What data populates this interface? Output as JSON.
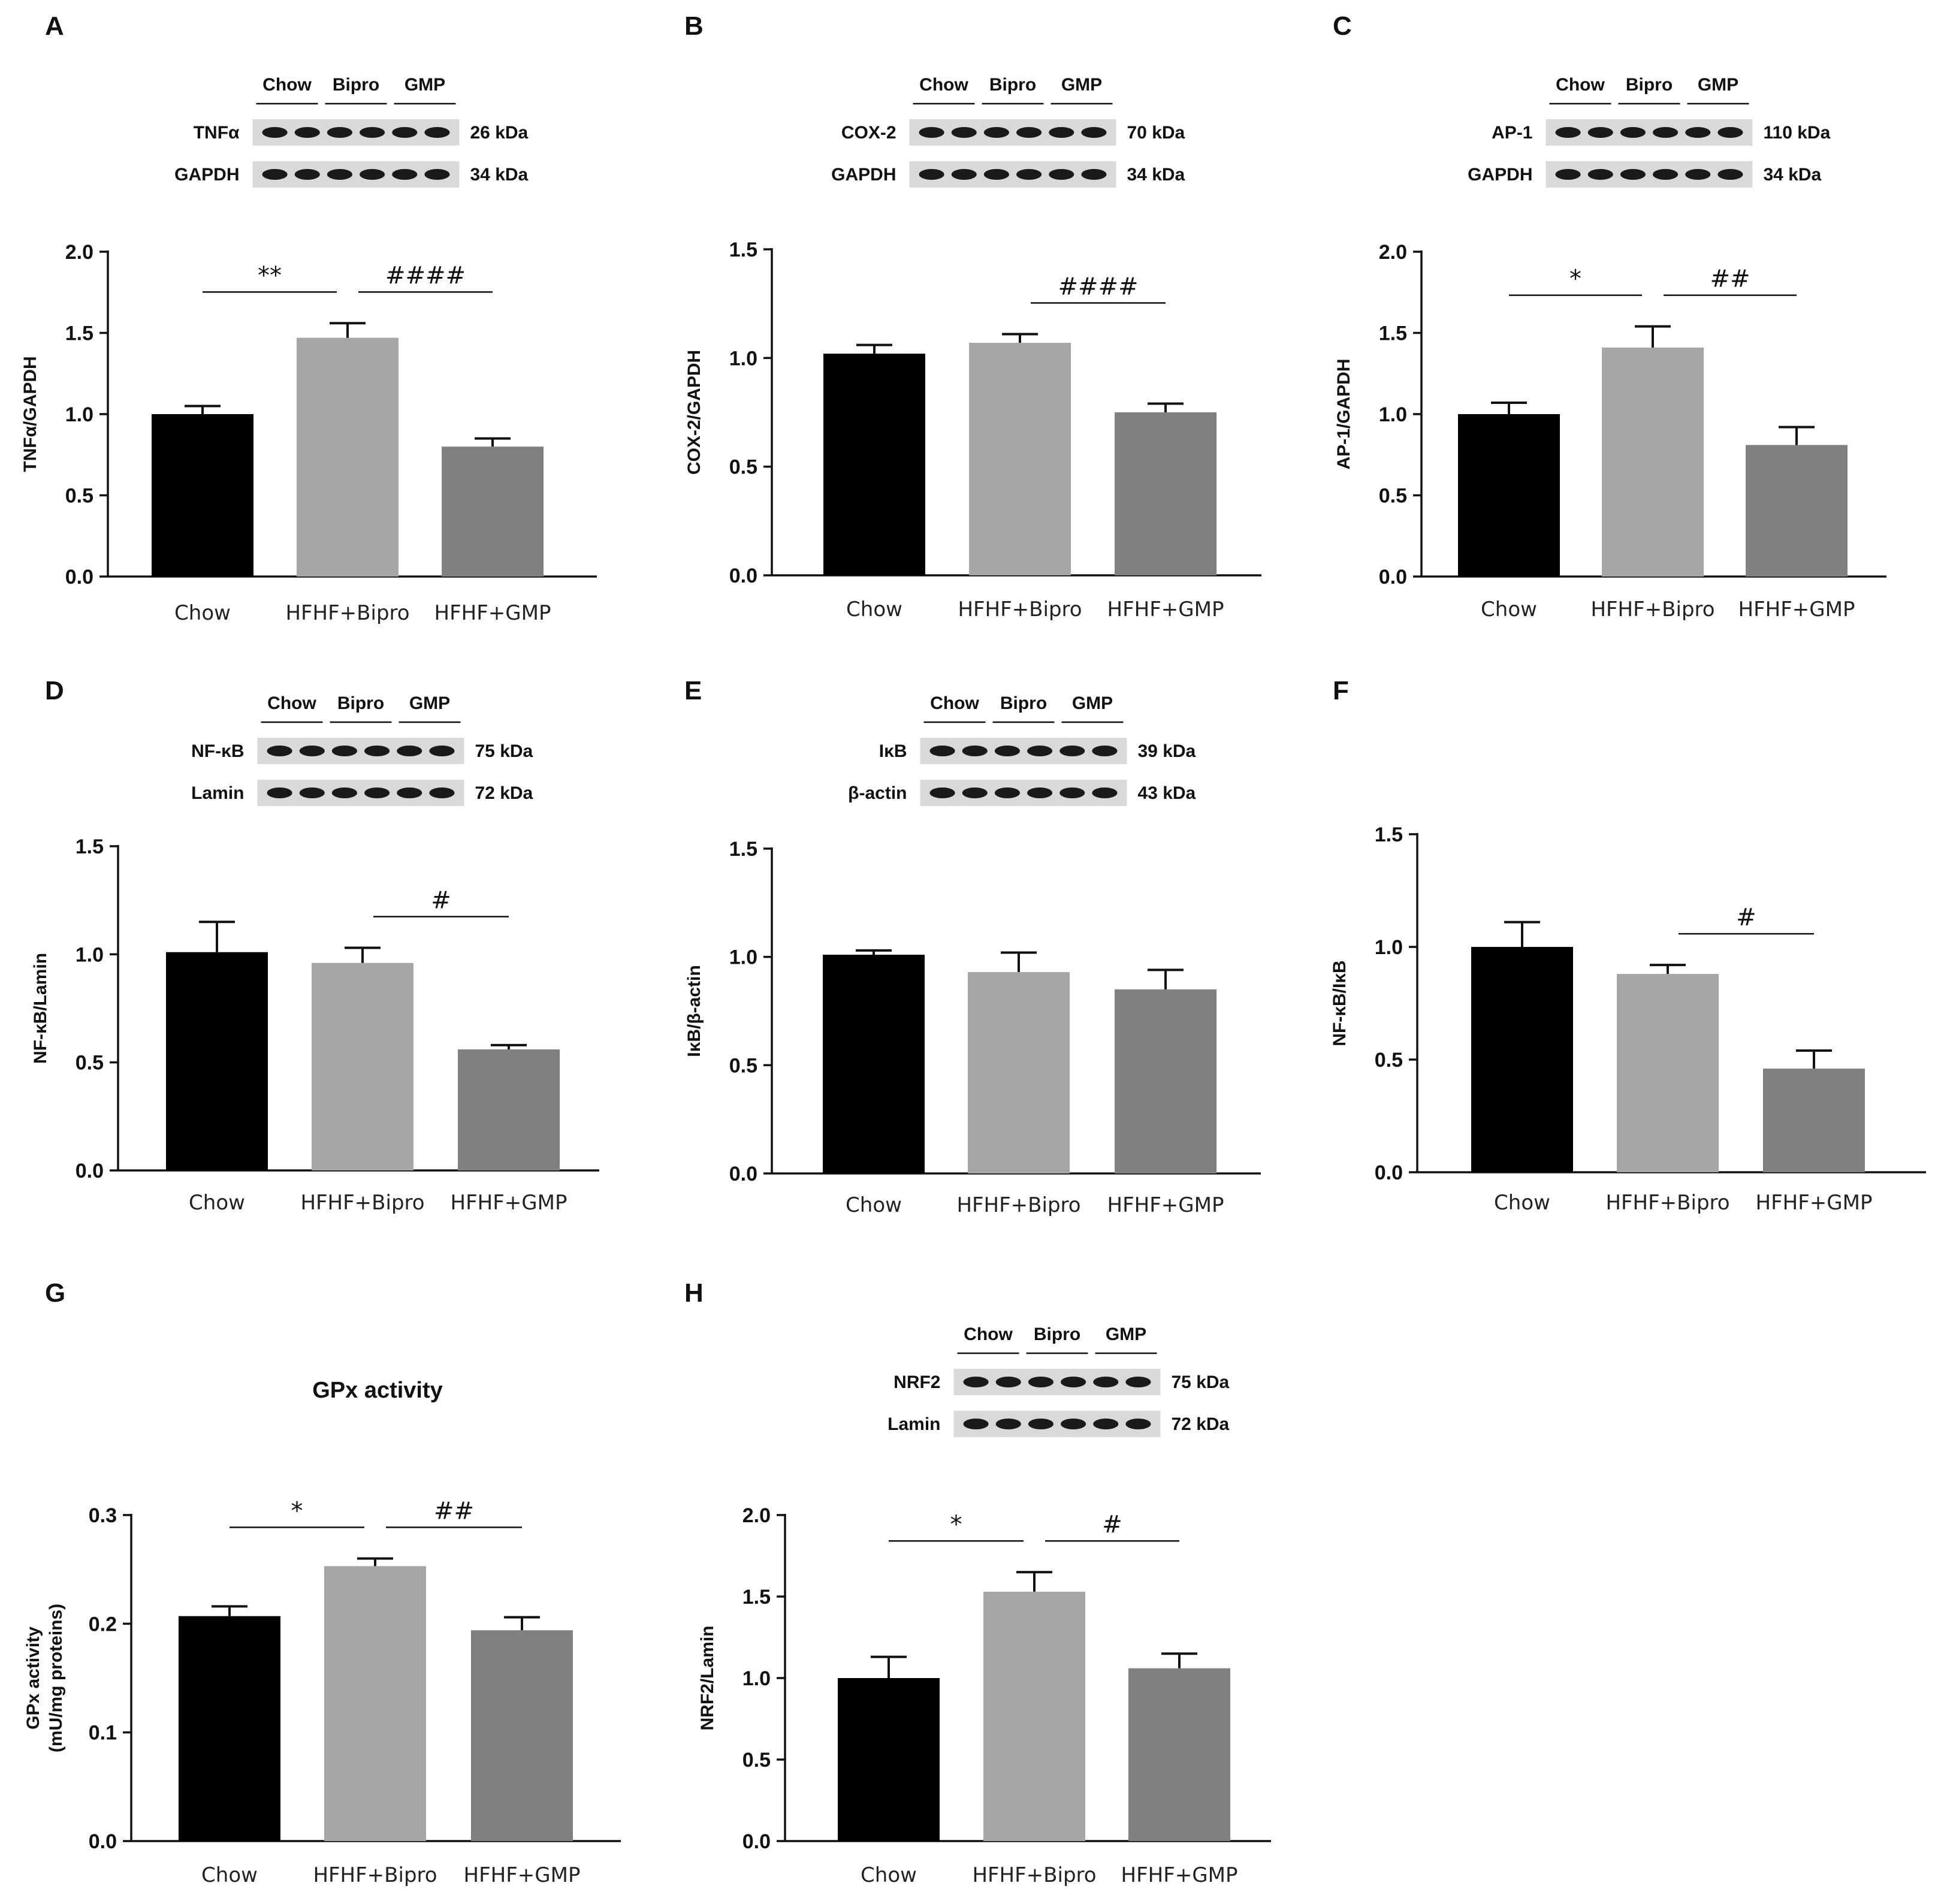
{
  "figure": {
    "colors": {
      "chow": "#000000",
      "bipro": "#a6a6a9",
      "gmp": "#808080"
    },
    "categories": [
      "Chow",
      "HFHF+Bipro",
      "HFHF+GMP"
    ]
  },
  "chart_data": [
    {
      "panel": "A",
      "type": "bar",
      "title": "",
      "xlabel": "",
      "ylabel": "TNFα/GAPDH",
      "ylim": [
        0,
        2.0
      ],
      "ticks": [
        "0.0",
        "0.5",
        "1.0",
        "1.5",
        "2.0"
      ],
      "categories": [
        "Chow",
        "HFHF+Bipro",
        "HFHF+GMP"
      ],
      "values": [
        1.0,
        1.47,
        0.8
      ],
      "errors": [
        0.05,
        0.09,
        0.05
      ],
      "annotations": [
        {
          "label": "**",
          "from": 0,
          "to": 1
        },
        {
          "label": "####",
          "from": 1,
          "to": 2
        }
      ],
      "blot": {
        "groups": [
          "Chow",
          "Bipro",
          "GMP"
        ],
        "rows": [
          {
            "name": "TNFα",
            "size": "26 kDa"
          },
          {
            "name": "GAPDH",
            "size": "34 kDa"
          }
        ]
      }
    },
    {
      "panel": "B",
      "type": "bar",
      "title": "",
      "xlabel": "",
      "ylabel": "COX-2/GAPDH",
      "ylim": [
        0,
        1.5
      ],
      "ticks": [
        "0.0",
        "0.5",
        "1.0",
        "1.5"
      ],
      "categories": [
        "Chow",
        "HFHF+Bipro",
        "HFHF+GMP"
      ],
      "values": [
        1.02,
        1.07,
        0.75
      ],
      "errors": [
        0.04,
        0.04,
        0.04
      ],
      "annotations": [
        {
          "label": "####",
          "from": 1,
          "to": 2
        }
      ],
      "blot": {
        "groups": [
          "Chow",
          "Bipro",
          "GMP"
        ],
        "rows": [
          {
            "name": "COX-2",
            "size": "70 kDa"
          },
          {
            "name": "GAPDH",
            "size": "34 kDa"
          }
        ]
      }
    },
    {
      "panel": "C",
      "type": "bar",
      "title": "",
      "xlabel": "",
      "ylabel": "AP-1/GAPDH",
      "ylim": [
        0,
        2.0
      ],
      "ticks": [
        "0.0",
        "0.5",
        "1.0",
        "1.5",
        "2.0"
      ],
      "categories": [
        "Chow",
        "HFHF+Bipro",
        "HFHF+GMP"
      ],
      "values": [
        1.0,
        1.41,
        0.81
      ],
      "errors": [
        0.07,
        0.13,
        0.11
      ],
      "annotations": [
        {
          "label": "*",
          "from": 0,
          "to": 1
        },
        {
          "label": "##",
          "from": 1,
          "to": 2
        }
      ],
      "blot": {
        "groups": [
          "Chow",
          "Bipro",
          "GMP"
        ],
        "rows": [
          {
            "name": "AP-1",
            "size": "110 kDa"
          },
          {
            "name": "GAPDH",
            "size": "34 kDa"
          }
        ]
      }
    },
    {
      "panel": "D",
      "type": "bar",
      "title": "",
      "xlabel": "",
      "ylabel": "NF-κB/Lamin",
      "ylim": [
        0,
        1.5
      ],
      "ticks": [
        "0.0",
        "0.5",
        "1.0",
        "1.5"
      ],
      "categories": [
        "Chow",
        "HFHF+Bipro",
        "HFHF+GMP"
      ],
      "values": [
        1.01,
        0.96,
        0.56
      ],
      "errors": [
        0.14,
        0.07,
        0.02
      ],
      "annotations": [
        {
          "label": "#",
          "from": 1,
          "to": 2
        }
      ],
      "blot": {
        "groups": [
          "Chow",
          "Bipro",
          "GMP"
        ],
        "rows": [
          {
            "name": "NF-κB",
            "size": "75 kDa"
          },
          {
            "name": "Lamin",
            "size": "72 kDa"
          }
        ]
      }
    },
    {
      "panel": "E",
      "type": "bar",
      "title": "",
      "xlabel": "",
      "ylabel": "IκB/β-actin",
      "ylim": [
        0,
        1.5
      ],
      "ticks": [
        "0.0",
        "0.5",
        "1.0",
        "1.5"
      ],
      "categories": [
        "Chow",
        "HFHF+Bipro",
        "HFHF+GMP"
      ],
      "values": [
        1.01,
        0.93,
        0.85
      ],
      "errors": [
        0.02,
        0.09,
        0.09
      ],
      "annotations": [],
      "blot": {
        "groups": [
          "Chow",
          "Bipro",
          "GMP"
        ],
        "rows": [
          {
            "name": "IκB",
            "size": "39 kDa"
          },
          {
            "name": "β-actin",
            "size": "43 kDa"
          }
        ]
      }
    },
    {
      "panel": "F",
      "type": "bar",
      "title": "",
      "xlabel": "",
      "ylabel": "NF-κB/IκB",
      "ylim": [
        0,
        1.5
      ],
      "ticks": [
        "0.0",
        "0.5",
        "1.0",
        "1.5"
      ],
      "categories": [
        "Chow",
        "HFHF+Bipro",
        "HFHF+GMP"
      ],
      "values": [
        1.0,
        0.88,
        0.46
      ],
      "errors": [
        0.11,
        0.04,
        0.08
      ],
      "annotations": [
        {
          "label": "#",
          "from": 1,
          "to": 2
        }
      ],
      "blot": null
    },
    {
      "panel": "G",
      "type": "bar",
      "title": "GPx activity",
      "xlabel": "",
      "ylabel": "GPx activity (mU/mg proteins)",
      "ylabel_lines": [
        "GPx activity",
        "(mU/mg proteins)"
      ],
      "ylim": [
        0,
        0.3
      ],
      "ticks": [
        "0.0",
        "0.1",
        "0.2",
        "0.3"
      ],
      "categories": [
        "Chow",
        "HFHF+Bipro",
        "HFHF+GMP"
      ],
      "values": [
        0.207,
        0.253,
        0.194
      ],
      "errors": [
        0.009,
        0.007,
        0.012
      ],
      "annotations": [
        {
          "label": "*",
          "from": 0,
          "to": 1
        },
        {
          "label": "##",
          "from": 1,
          "to": 2
        }
      ],
      "blot": null
    },
    {
      "panel": "H",
      "type": "bar",
      "title": "",
      "xlabel": "",
      "ylabel": "NRF2/Lamin",
      "ylim": [
        0,
        2.0
      ],
      "ticks": [
        "0.0",
        "0.5",
        "1.0",
        "1.5",
        "2.0"
      ],
      "categories": [
        "Chow",
        "HFHF+Bipro",
        "HFHF+GMP"
      ],
      "values": [
        1.0,
        1.53,
        1.06
      ],
      "errors": [
        0.13,
        0.12,
        0.09
      ],
      "annotations": [
        {
          "label": "*",
          "from": 0,
          "to": 1
        },
        {
          "label": "#",
          "from": 1,
          "to": 2
        }
      ],
      "blot": {
        "groups": [
          "Chow",
          "Bipro",
          "GMP"
        ],
        "rows": [
          {
            "name": "NRF2",
            "size": "75 kDa"
          },
          {
            "name": "Lamin",
            "size": "72 kDa"
          }
        ]
      }
    }
  ]
}
